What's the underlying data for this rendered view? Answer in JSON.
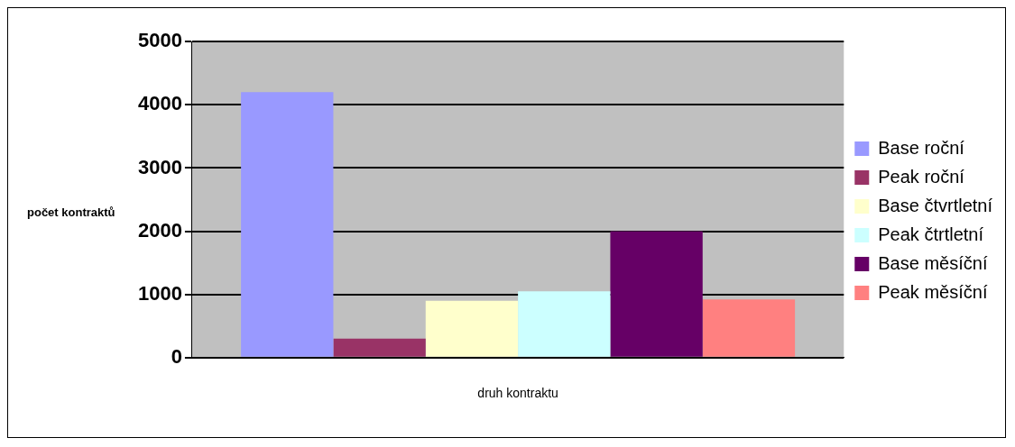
{
  "chart_data": {
    "type": "bar",
    "categories": [
      null
    ],
    "xlabel": "druh kontraktu",
    "ylabel": "počet kontraktů",
    "series": [
      {
        "name": "Base roční",
        "color": "#9999ff",
        "values": [
          4200
        ]
      },
      {
        "name": "Peak roční",
        "color": "#993366",
        "values": [
          300
        ]
      },
      {
        "name": "Base čtvrtletní",
        "color": "#ffffcc",
        "values": [
          900
        ]
      },
      {
        "name": "Peak čtrtletní",
        "color": "#ccffff",
        "values": [
          1050
        ]
      },
      {
        "name": "Base měsíční",
        "color": "#660066",
        "values": [
          2000
        ]
      },
      {
        "name": "Peak měsíční",
        "color": "#ff8080",
        "values": [
          920
        ]
      }
    ],
    "ylim": [
      0,
      5000
    ],
    "yticks": [
      0,
      1000,
      2000,
      3000,
      4000,
      5000
    ],
    "grid": "y",
    "legend": "right"
  }
}
